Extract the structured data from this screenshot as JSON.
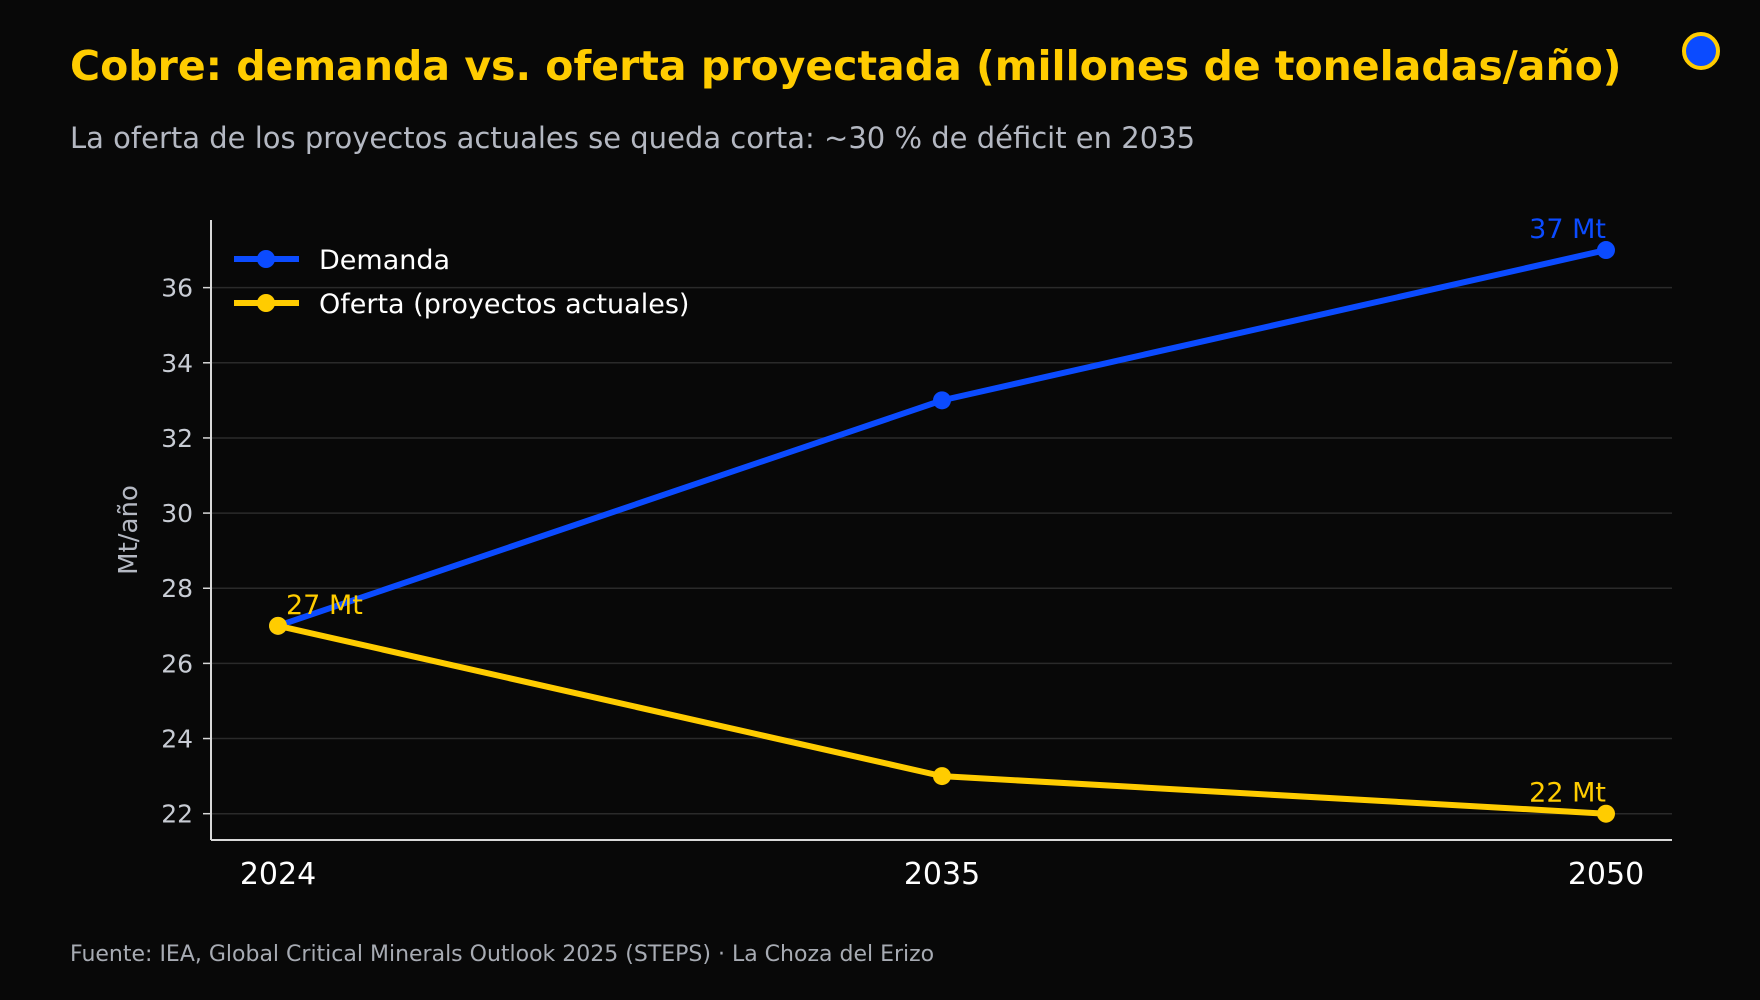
{
  "header": {
    "title": "Cobre: demanda vs. oferta proyectada (millones de toneladas/año)",
    "subtitle": "La oferta de los proyectos actuales se queda corta: ~30 % de déficit en 2035"
  },
  "footer": {
    "source": "Fuente: IEA, Global Critical Minerals Outlook 2025 (STEPS)  ·  La Choza del Erizo"
  },
  "colors": {
    "background": "#080808",
    "demand": "#0B4BFF",
    "supply": "#FFCC00",
    "grid": "#2A2A2A",
    "axis": "#D8D8D8",
    "tick_text": "#C8CCD4",
    "legend_text": "#FFFFFF"
  },
  "chart_data": {
    "type": "line",
    "x": [
      "2024",
      "2035",
      "2050"
    ],
    "series": [
      {
        "name": "Demanda",
        "values": [
          27,
          33,
          37
        ],
        "color": "#0B4BFF"
      },
      {
        "name": "Oferta (proyectos actuales)",
        "values": [
          27,
          23,
          22
        ],
        "color": "#FFCC00"
      }
    ],
    "annotations": [
      {
        "text": "37 Mt",
        "series": "Demanda",
        "x": "2050",
        "y": 37
      },
      {
        "text": "27 Mt",
        "series": "Oferta (proyectos actuales)",
        "x": "2024",
        "y": 27
      },
      {
        "text": "22 Mt",
        "series": "Oferta (proyectos actuales)",
        "x": "2050",
        "y": 22
      }
    ],
    "ylabel": "Mt/año",
    "xlabel": "",
    "yticks": [
      22,
      24,
      26,
      28,
      30,
      32,
      34,
      36
    ],
    "ylim": [
      21.3,
      37.8
    ],
    "grid": true,
    "legend_position": "top-left"
  }
}
